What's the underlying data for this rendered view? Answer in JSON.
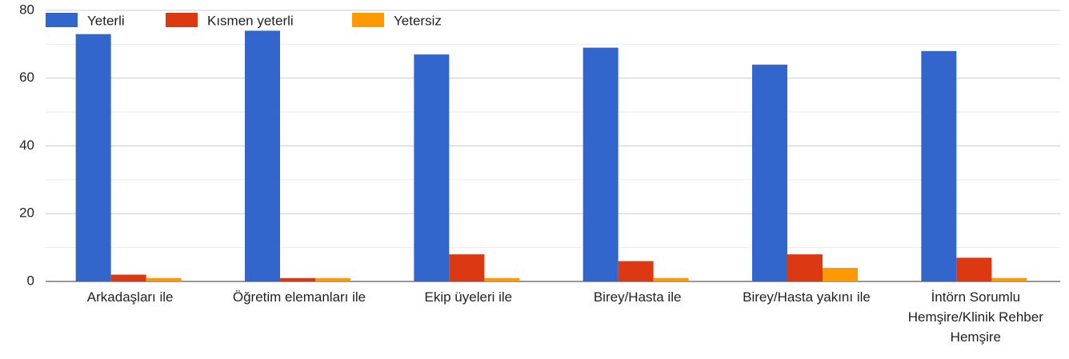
{
  "chart_data": {
    "type": "bar",
    "categories": [
      "Arkadaşları ile",
      "Öğretim elemanları ile",
      "Ekip üyeleri ile",
      "Birey/Hasta ile",
      "Birey/Hasta yakını ile",
      "İntörn Sorumlu Hemşire/Klinik Rehber Hemşire"
    ],
    "series": [
      {
        "name": "Yeterli",
        "color": "#3366cc",
        "values": [
          73,
          74,
          67,
          69,
          64,
          68
        ]
      },
      {
        "name": "Kısmen yeterli",
        "color": "#dc3912",
        "values": [
          2,
          1,
          8,
          6,
          8,
          7
        ]
      },
      {
        "name": "Yetersiz",
        "color": "#ff9900",
        "values": [
          1,
          1,
          1,
          1,
          4,
          1
        ]
      }
    ],
    "ylim": [
      0,
      80
    ],
    "yticks": [
      0,
      20,
      40,
      60,
      80
    ],
    "grid": true,
    "legend": "top-left"
  }
}
